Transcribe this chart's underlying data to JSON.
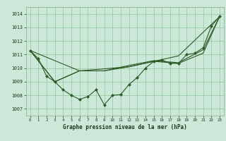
{
  "xlabel": "Graphe pression niveau de la mer (hPa)",
  "background_color": "#cce8d8",
  "grid_color": "#99ccaa",
  "line_color": "#2d5a27",
  "xlim": [
    -0.5,
    23.5
  ],
  "ylim": [
    1006.5,
    1014.5
  ],
  "yticks": [
    1007,
    1008,
    1009,
    1010,
    1011,
    1012,
    1013,
    1014
  ],
  "xticks": [
    0,
    1,
    2,
    3,
    4,
    5,
    6,
    7,
    8,
    9,
    10,
    11,
    12,
    13,
    14,
    15,
    16,
    17,
    18,
    19,
    20,
    21,
    22,
    23
  ],
  "series_hourly": {
    "x": [
      0,
      1,
      2,
      3,
      4,
      5,
      6,
      7,
      8,
      9,
      10,
      11,
      12,
      13,
      14,
      15,
      16,
      17,
      18,
      19,
      20,
      21,
      22,
      23
    ],
    "y": [
      1011.3,
      1010.7,
      1009.4,
      1009.0,
      1008.4,
      1008.0,
      1007.7,
      1007.9,
      1008.4,
      1007.3,
      1008.0,
      1008.05,
      1008.8,
      1009.3,
      1010.0,
      1010.5,
      1010.6,
      1010.35,
      1010.35,
      1011.0,
      1011.1,
      1011.5,
      1013.1,
      1013.8
    ]
  },
  "series_6h": {
    "x": [
      0,
      6,
      12,
      18,
      23
    ],
    "y": [
      1011.3,
      1009.8,
      1010.1,
      1010.9,
      1013.8
    ]
  },
  "series_3h_a": {
    "x": [
      0,
      3,
      6,
      9,
      12,
      15,
      18,
      21,
      23
    ],
    "y": [
      1011.3,
      1009.0,
      1009.8,
      1009.8,
      1010.1,
      1010.5,
      1010.35,
      1011.1,
      1013.8
    ]
  },
  "series_3h_b": {
    "x": [
      0,
      3,
      6,
      9,
      12,
      15,
      18,
      21,
      23
    ],
    "y": [
      1011.3,
      1009.0,
      1009.8,
      1009.8,
      1010.2,
      1010.55,
      1010.4,
      1011.35,
      1013.8
    ]
  }
}
